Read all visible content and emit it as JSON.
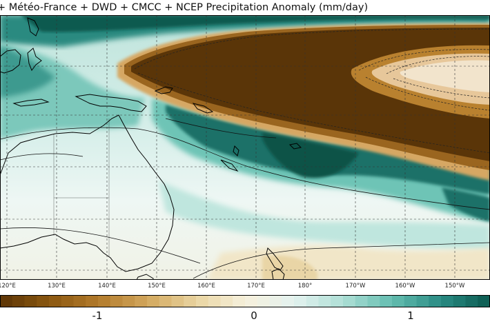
{
  "title": "+ Météo-France + DWD + CMCC + NCEP Precipitation Anomaly (mm/day)",
  "longitude_labels": [
    "120°E",
    "130°E",
    "140°E",
    "150°E",
    "160°E",
    "170°E",
    "180°",
    "170°W",
    "160°W",
    "150°W"
  ],
  "colorbar": {
    "ticks": [
      "-1",
      "0",
      "1"
    ],
    "range": [
      -1.5,
      1.5
    ],
    "colors": [
      "#5b3306",
      "#8a5710",
      "#b27a2b",
      "#d2a75d",
      "#e9d4a0",
      "#f6f0dc",
      "#e4f2ef",
      "#aedfd6",
      "#64bdb0",
      "#2a8b83",
      "#0b5a4f"
    ]
  },
  "map_colors": {
    "dry_core": "#5a3508",
    "dry_mid": "#93601a",
    "dry_edge": "#c99449",
    "dry_light": "#e8cf99",
    "neutral": "#eef6f3",
    "wet_light": "#c9e9e2",
    "wet_mid": "#6ec4b6",
    "wet_strong": "#277f77",
    "wet_core": "#0b5247",
    "land_outline": "#000000",
    "grid": "#333333"
  }
}
